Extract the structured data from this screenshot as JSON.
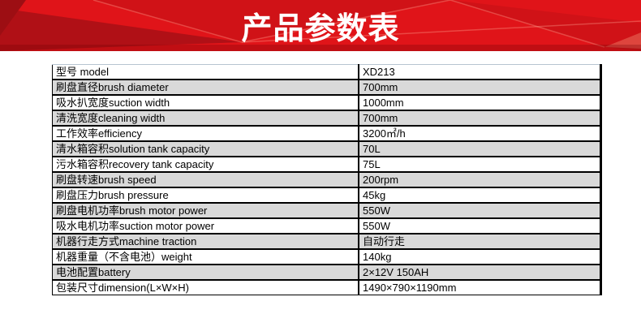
{
  "banner": {
    "title": "产品参数表"
  },
  "colors": {
    "banner_red": "#e01419",
    "banner_dark_red": "#b01016",
    "banner_deep_red": "#9d0e13",
    "title_text": "#ffffff",
    "row_alt_gray": "#d9d9d9",
    "table_border": "#000000",
    "table_top_border": "#b7c4d1"
  },
  "table": {
    "rows": [
      {
        "label": "型号 model",
        "value": "XD213"
      },
      {
        "label": "刷盘直径brush diameter",
        "value": "700mm"
      },
      {
        "label": "吸水扒宽度suction width",
        "value": "1000mm"
      },
      {
        "label": "清洗宽度cleaning width",
        "value": "700mm"
      },
      {
        "label": "工作效率efficiency",
        "value": "3200㎡/h"
      },
      {
        "label": "清水箱容积solution tank capacity",
        "value": "70L"
      },
      {
        "label": "污水箱容积recovery tank capacity",
        "value": "75L"
      },
      {
        "label": "刷盘转速brush speed",
        "value": "200rpm"
      },
      {
        "label": "刷盘压力brush pressure",
        "value": "45kg"
      },
      {
        "label": "刷盘电机功率brush motor power",
        "value": "550W"
      },
      {
        "label": "吸水电机功率suction motor power",
        "value": "550W"
      },
      {
        "label": "机器行走方式machine traction",
        "value": "自动行走"
      },
      {
        "label": "机器重量（不含电池）weight",
        "value": "140kg"
      },
      {
        "label": "电池配置battery",
        "value": "2×12V 150AH"
      },
      {
        "label": "包装尺寸dimension(L×W×H)",
        "value": "1490×790×1190mm"
      }
    ]
  }
}
